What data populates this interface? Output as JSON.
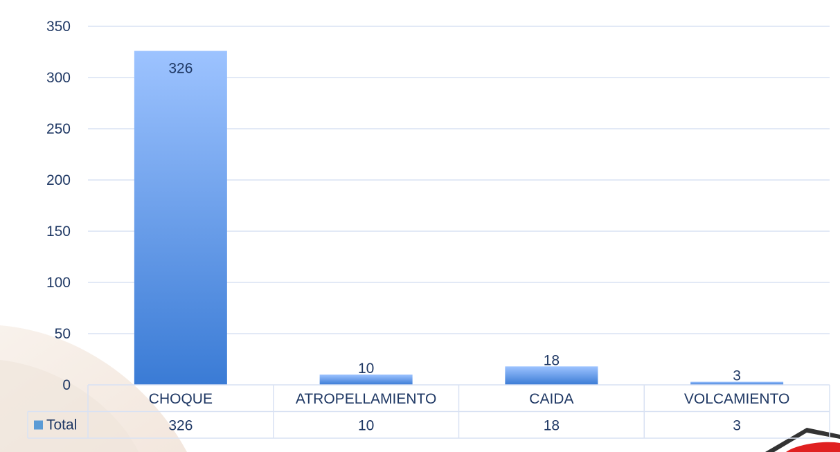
{
  "chart_data": {
    "type": "bar",
    "categories": [
      "CHOQUE",
      "ATROPELLAMIENTO",
      "CAIDA",
      "VOLCAMIENTO"
    ],
    "series": [
      {
        "name": "Total",
        "values": [
          326,
          10,
          18,
          3
        ]
      }
    ],
    "ylim": [
      0,
      350
    ],
    "yticks": [
      0,
      50,
      100,
      150,
      200,
      250,
      300,
      350
    ],
    "grid": true,
    "data_table": true,
    "colors": {
      "bar_top": "#9dc3ff",
      "bar_bottom": "#3a7bd5",
      "grid": "#d9e2f3",
      "text": "#1f3864",
      "legend_key": "#5b9bd5"
    }
  }
}
